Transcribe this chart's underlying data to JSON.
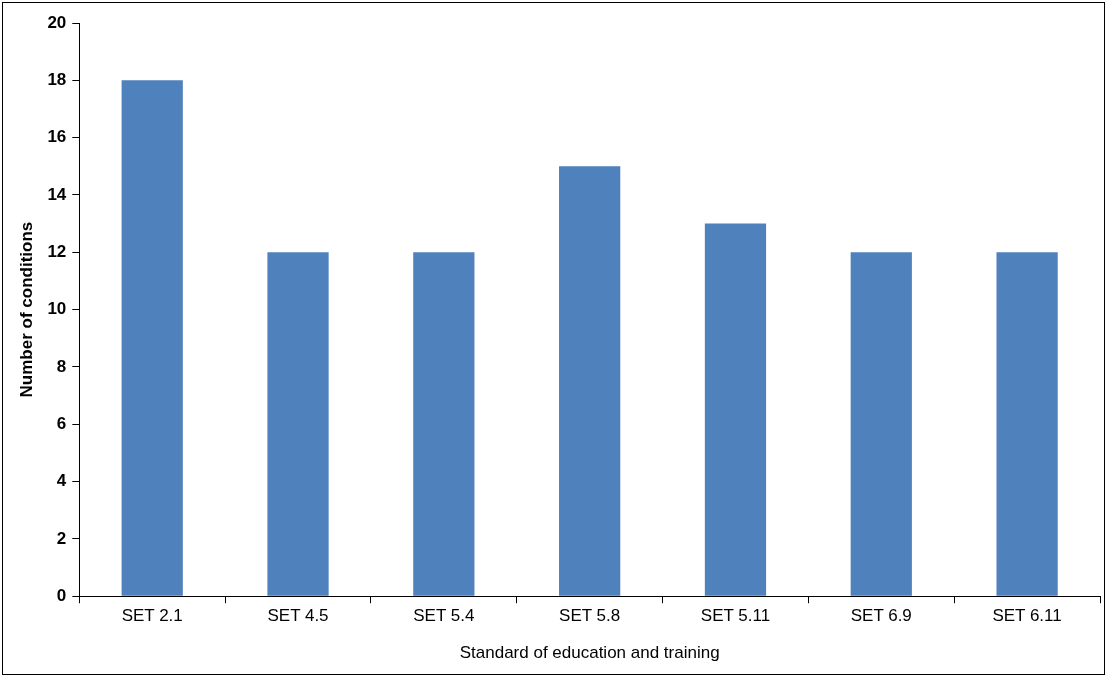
{
  "chart_data": {
    "type": "bar",
    "xlabel": "Standard of education and training",
    "ylabel": "Number of conditions",
    "categories": [
      "SET 2.1",
      "SET 4.5",
      "SET 5.4",
      "SET 5.8",
      "SET 5.11",
      "SET 6.9",
      "SET 6.11"
    ],
    "values": [
      18,
      12,
      12,
      15,
      13,
      12,
      12
    ],
    "color": "#4f81bd",
    "ylim": [
      0,
      20
    ],
    "yticks": [
      0,
      2,
      4,
      6,
      8,
      10,
      12,
      14,
      16,
      18,
      20
    ],
    "grid": false,
    "legend": false
  }
}
